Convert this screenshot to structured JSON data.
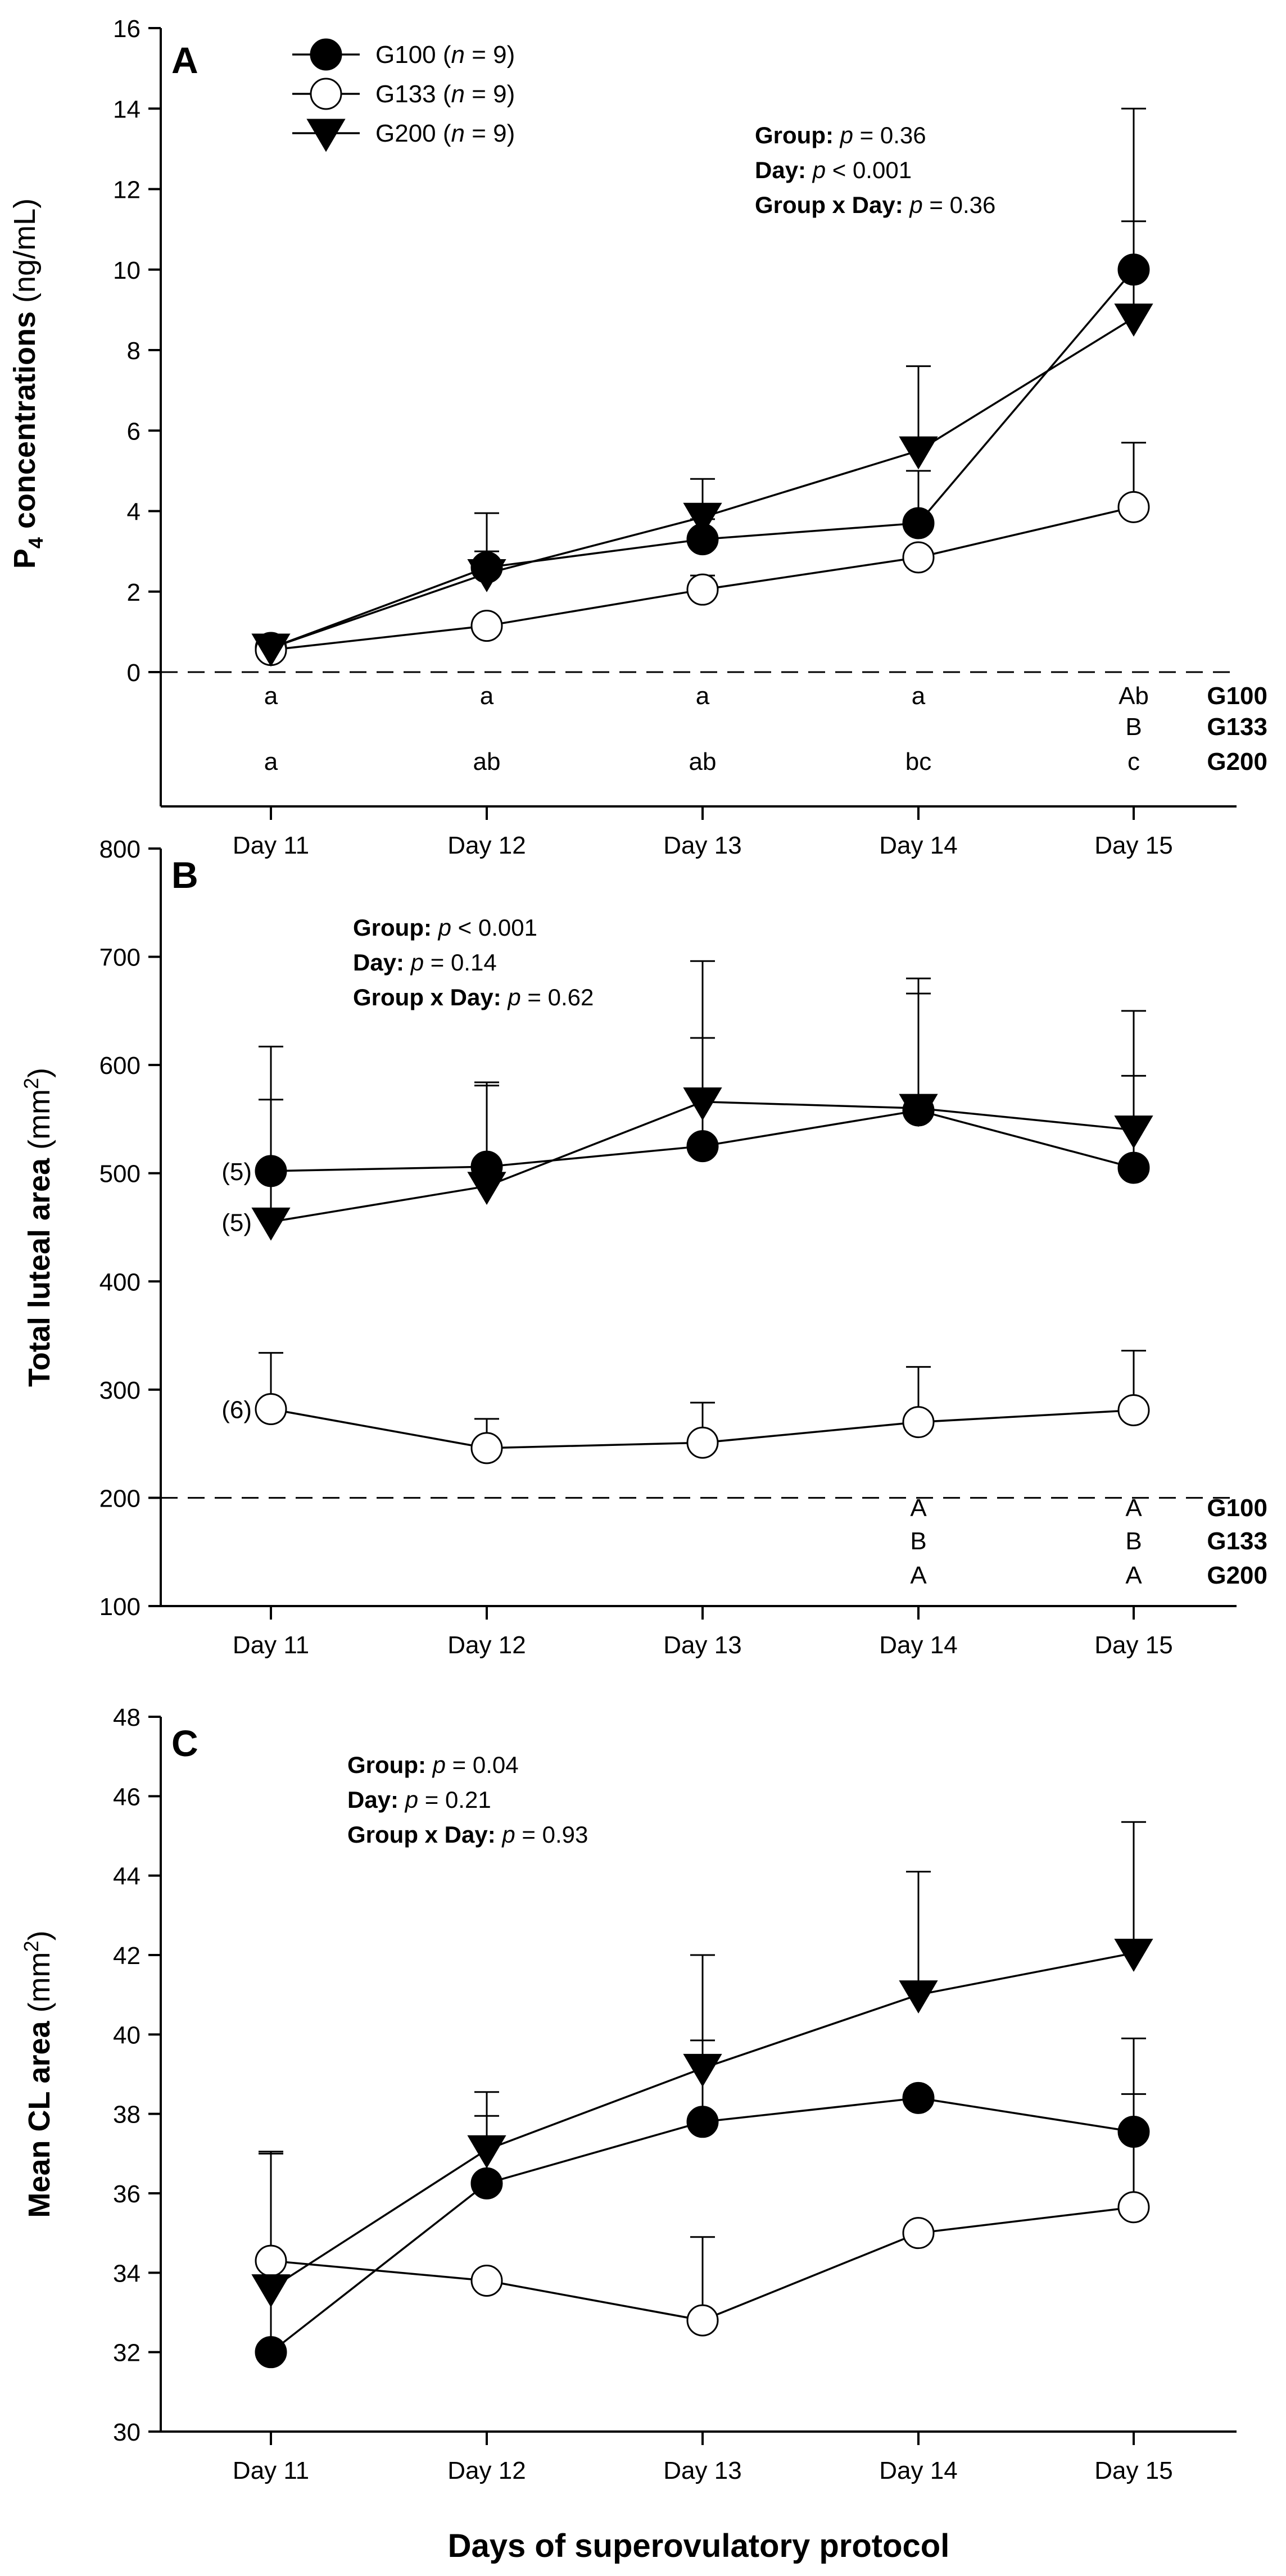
{
  "colors": {
    "axis": "#000000",
    "filled": "#000000",
    "open": "#ffffff"
  },
  "x_title": "Days of superovulatory protocol",
  "legend": [
    {
      "series": "G100",
      "label": "G100 (",
      "n": "n",
      "rest": " = 9)",
      "marker": "filled-circle"
    },
    {
      "series": "G133",
      "label": "G133 (",
      "n": "n",
      "rest": " = 9)",
      "marker": "open-circle"
    },
    {
      "series": "G200",
      "label": "G200 (",
      "n": "n",
      "rest": " = 9)",
      "marker": "filled-triangle-down"
    }
  ],
  "chart_data": [
    {
      "panel": "A",
      "type": "line",
      "ylabel": "P",
      "ylabel_sub": "4",
      "ylabel_rest": " concentrations",
      "yunit": " (ng/mL)",
      "ylim": [
        0,
        16
      ],
      "yticks": [
        0,
        2,
        4,
        6,
        8,
        10,
        12,
        14,
        16
      ],
      "reference_line": 0,
      "categories": [
        "Day 11",
        "Day 12",
        "Day 13",
        "Day 14",
        "Day 15"
      ],
      "series": [
        {
          "name": "G100",
          "marker": "filled-circle",
          "values": [
            0.6,
            2.6,
            3.3,
            3.7,
            10.0
          ],
          "errors": [
            0.2,
            0.4,
            0.5,
            1.3,
            4.0
          ]
        },
        {
          "name": "G133",
          "marker": "open-circle",
          "values": [
            0.55,
            1.15,
            2.05,
            2.85,
            4.1
          ],
          "errors": [
            0.0,
            0.0,
            0.35,
            0.0,
            1.6
          ]
        },
        {
          "name": "G200",
          "marker": "filled-triangle-down",
          "values": [
            0.6,
            2.45,
            3.85,
            5.5,
            8.8
          ],
          "errors": [
            0.2,
            1.5,
            0.95,
            2.1,
            2.4
          ]
        }
      ],
      "stats": [
        {
          "label": "Group:",
          "p": "p",
          "value": " = 0.36"
        },
        {
          "label": "Day:",
          "p": "p",
          "value": " < 0.001"
        },
        {
          "label": "Group x Day:",
          "p": "p",
          "value": " = 0.36"
        }
      ],
      "letters": [
        {
          "group": "G100",
          "values": [
            "a",
            "a",
            "a",
            "a",
            "Ab"
          ]
        },
        {
          "group": "G133",
          "values": [
            "",
            "",
            "",
            "",
            "B"
          ]
        },
        {
          "group": "G200",
          "values": [
            "a",
            "ab",
            "ab",
            "bc",
            "c"
          ]
        }
      ],
      "n_labels": []
    },
    {
      "panel": "B",
      "type": "line",
      "ylabel": "Total luteal area",
      "yunit": " (mm",
      "yunit_sup": "2",
      "yunit_close": ")",
      "ylim": [
        100,
        800
      ],
      "yticks": [
        100,
        200,
        300,
        400,
        500,
        600,
        700,
        800
      ],
      "reference_line": 200,
      "categories": [
        "Day 11",
        "Day 12",
        "Day 13",
        "Day 14",
        "Day 15"
      ],
      "series": [
        {
          "name": "G100",
          "marker": "filled-circle",
          "values": [
            502,
            506,
            525,
            558,
            505
          ],
          "errors": [
            115,
            78,
            100,
            108,
            85
          ]
        },
        {
          "name": "G133",
          "marker": "open-circle",
          "values": [
            282,
            246,
            251,
            270,
            281
          ],
          "errors": [
            52,
            27,
            37,
            51,
            55
          ]
        },
        {
          "name": "G200",
          "marker": "filled-triangle-down",
          "values": [
            455,
            488,
            566,
            560,
            540
          ],
          "errors": [
            113,
            93,
            130,
            120,
            110
          ]
        }
      ],
      "stats": [
        {
          "label": "Group:",
          "p": "p",
          "value": " < 0.001"
        },
        {
          "label": "Day:",
          "p": "p",
          "value": " = 0.14"
        },
        {
          "label": "Group x Day:",
          "p": "p",
          "value": " = 0.62"
        }
      ],
      "letters": [
        {
          "group": "G100",
          "values": [
            "",
            "",
            "",
            "A",
            "A"
          ]
        },
        {
          "group": "G133",
          "values": [
            "",
            "",
            "",
            "B",
            "B"
          ]
        },
        {
          "group": "G200",
          "values": [
            "",
            "",
            "",
            "A",
            "A"
          ]
        }
      ],
      "n_labels": [
        {
          "series": "G100",
          "text": "(5)"
        },
        {
          "series": "G200",
          "text": "(5)"
        },
        {
          "series": "G133",
          "text": "(6)"
        }
      ]
    },
    {
      "panel": "C",
      "type": "line",
      "ylabel": "Mean CL area",
      "yunit": " (mm",
      "yunit_sup": "2",
      "yunit_close": ")",
      "ylim": [
        30,
        48
      ],
      "yticks": [
        30,
        32,
        34,
        36,
        38,
        40,
        42,
        44,
        46,
        48
      ],
      "reference_line": null,
      "categories": [
        "Day 11",
        "Day 12",
        "Day 13",
        "Day 14",
        "Day 15"
      ],
      "series": [
        {
          "name": "G100",
          "marker": "filled-circle",
          "values": [
            32.0,
            36.25,
            37.8,
            38.4,
            37.55
          ],
          "errors": [
            5.0,
            1.7,
            2.05,
            0.25,
            2.35
          ]
        },
        {
          "name": "G133",
          "marker": "open-circle",
          "values": [
            34.3,
            33.8,
            32.8,
            35.0,
            35.65
          ],
          "errors": [
            0.0,
            0.0,
            2.1,
            0.0,
            2.85
          ]
        },
        {
          "name": "G200",
          "marker": "filled-triangle-down",
          "values": [
            33.6,
            37.1,
            39.15,
            41.0,
            42.05
          ],
          "errors": [
            3.45,
            1.45,
            2.85,
            3.1,
            3.3
          ]
        }
      ],
      "stats": [
        {
          "label": "Group:",
          "p": "p",
          "value": " = 0.04"
        },
        {
          "label": "Day:",
          "p": "p",
          "value": " = 0.21"
        },
        {
          "label": "Group x Day:",
          "p": "p",
          "value": " = 0.93"
        }
      ],
      "letters": [],
      "n_labels": []
    }
  ]
}
